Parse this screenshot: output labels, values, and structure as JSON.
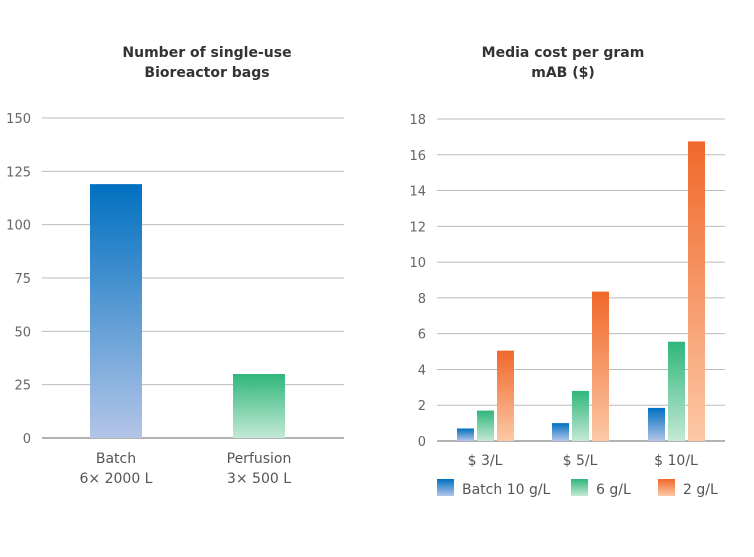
{
  "chart_data": [
    {
      "type": "bar",
      "title": [
        "Number of single-use",
        "Bioreactor bags"
      ],
      "categories": [
        [
          "Batch",
          "6× 2000 L"
        ],
        [
          "Perfusion",
          "3× 500 L"
        ]
      ],
      "values": [
        119,
        30
      ],
      "colors": [
        "#0070c0",
        "#2fb67a"
      ],
      "ylim": [
        0,
        150
      ],
      "yticks": [
        0,
        25,
        50,
        75,
        100,
        125,
        150
      ],
      "grid": true
    },
    {
      "type": "bar",
      "title": [
        "Media cost per gram",
        "mAB ($)"
      ],
      "categories": [
        "$ 3/L",
        "$ 5/L",
        "$ 10/L"
      ],
      "series": [
        {
          "name": "Batch 10 g/L",
          "values": [
            0.7,
            1.0,
            1.85
          ],
          "color": "#0070c0"
        },
        {
          "name": "6 g/L",
          "values": [
            1.7,
            2.8,
            5.55
          ],
          "color": "#2fb67a"
        },
        {
          "name": "2 g/L",
          "values": [
            5.05,
            8.35,
            16.75
          ],
          "color": "#f0682a"
        }
      ],
      "ylim": [
        0,
        18
      ],
      "yticks": [
        0,
        2,
        4,
        6,
        8,
        10,
        12,
        14,
        16,
        18
      ],
      "grid": true,
      "legend": "bottom"
    }
  ]
}
